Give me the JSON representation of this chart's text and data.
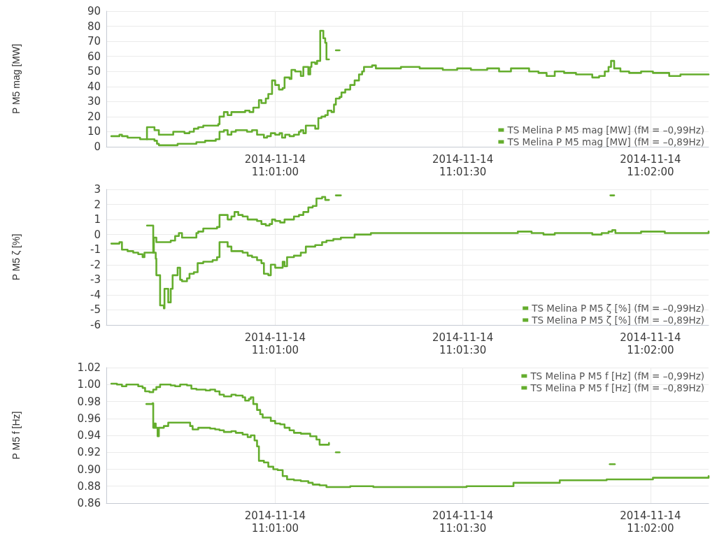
{
  "chart_data": [
    {
      "type": "step",
      "ylabel": "P M5 mag [MW]",
      "xlim": [
        "2014-11-14T11:00:33",
        "2014-11-14T11:02:09.3"
      ],
      "xticks": [
        {
          "value": "2014-11-14T11:01:00",
          "label": "2014-11-14\n11:01:00"
        },
        {
          "value": "2014-11-14T11:01:30",
          "label": "2014-11-14\n11:01:30"
        },
        {
          "value": "2014-11-14T11:02:00",
          "label": "2014-11-14\n11:02:00"
        }
      ],
      "ylim": [
        0,
        90
      ],
      "yticks": [
        0,
        10,
        20,
        30,
        40,
        50,
        60,
        70,
        80,
        90
      ],
      "grid": true,
      "legend": "bottom right",
      "series": [
        {
          "name": "TS Melina P M5 mag [MW] (fM = –0,99Hz)",
          "color": "#64ad2d",
          "x": [
            "2014-11-14T11:00:33.8",
            "2014-11-14T11:00:34.7",
            "2014-11-14T11:00:35.1",
            "2014-11-14T11:00:35.5",
            "2014-11-14T11:00:36.4",
            "2014-11-14T11:00:37.3",
            "2014-11-14T11:00:38.4",
            "2014-11-14T11:00:39.5",
            "2014-11-14T11:00:40.3",
            "2014-11-14T11:00:40.7",
            "2014-11-14T11:00:41.4",
            "2014-11-14T11:00:42.2",
            "2014-11-14T11:00:43.7",
            "2014-11-14T11:00:44.4",
            "2014-11-14T11:00:45.5",
            "2014-11-14T11:00:46.3",
            "2014-11-14T11:00:47",
            "2014-11-14T11:00:47.7",
            "2014-11-14T11:00:48.5",
            "2014-11-14T11:00:49.6",
            "2014-11-14T11:00:50.9",
            "2014-11-14T11:00:51.1",
            "2014-11-14T11:00:51.8",
            "2014-11-14T11:00:52.4",
            "2014-11-14T11:00:53",
            "2014-11-14T11:00:54.4",
            "2014-11-14T11:00:55.2",
            "2014-11-14T11:00:55.9",
            "2014-11-14T11:00:56.5",
            "2014-11-14T11:00:57.1",
            "2014-11-14T11:00:57.4",
            "2014-11-14T11:00:57.8",
            "2014-11-14T11:00:58.5",
            "2014-11-14T11:00:58.9",
            "2014-11-14T11:00:59.5",
            "2014-11-14T11:01:00",
            "2014-11-14T11:01:00.6",
            "2014-11-14T11:01:01.2",
            "2014-11-14T11:01:01.5",
            "2014-11-14T11:01:02.3",
            "2014-11-14T11:01:02.6",
            "2014-11-14T11:01:03.2",
            "2014-11-14T11:01:04.1",
            "2014-11-14T11:01:04.5",
            "2014-11-14T11:01:05.3",
            "2014-11-14T11:01:05.6",
            "2014-11-14T11:01:05.8",
            "2014-11-14T11:01:06.4",
            "2014-11-14T11:01:06.7",
            "2014-11-14T11:01:07.2",
            "2014-11-14T11:01:07.7",
            "2014-11-14T11:01:08",
            "2014-11-14T11:01:08.2",
            "2014-11-14T11:01:08.6"
          ],
          "values": [
            7,
            7,
            8,
            7,
            6,
            6,
            5,
            13,
            13,
            11,
            8,
            8,
            10,
            10,
            9,
            10,
            12,
            13,
            14,
            14,
            15,
            20,
            23,
            21,
            23,
            23,
            24,
            23,
            26,
            26,
            31,
            29,
            32,
            35,
            44,
            41,
            38,
            39,
            46,
            45,
            51,
            50,
            47,
            53,
            48,
            53,
            56,
            55,
            57,
            77,
            72,
            69,
            58,
            58
          ]
        },
        {
          "color": "#64ad2d",
          "x": [
            "2014-11-14T11:01:09.7",
            "2014-11-14T11:01:10.3"
          ],
          "values": [
            64,
            64
          ]
        },
        {
          "name": "TS Melina P M5 mag [MW] (fM = –0,89Hz)",
          "color": "#64ad2d",
          "x": [
            "2014-11-14T11:00:39.5",
            "2014-11-14T11:00:40.3",
            "2014-11-14T11:00:40.7",
            "2014-11-14T11:00:41.1",
            "2014-11-14T11:00:41.4",
            "2014-11-14T11:00:43.7",
            "2014-11-14T11:00:44.4",
            "2014-11-14T11:00:45.5",
            "2014-11-14T11:00:46.6",
            "2014-11-14T11:00:47.4",
            "2014-11-14T11:00:48.1",
            "2014-11-14T11:00:48.8",
            "2014-11-14T11:00:49.6",
            "2014-11-14T11:00:50.5",
            "2014-11-14T11:00:50.9",
            "2014-11-14T11:00:51.1",
            "2014-11-14T11:00:51.8",
            "2014-11-14T11:00:52.4",
            "2014-11-14T11:00:53",
            "2014-11-14T11:00:53.7",
            "2014-11-14T11:00:55.5",
            "2014-11-14T11:00:56.3",
            "2014-11-14T11:00:57.1",
            "2014-11-14T11:00:57.6",
            "2014-11-14T11:00:58.2",
            "2014-11-14T11:00:58.7",
            "2014-11-14T11:00:59.3",
            "2014-11-14T11:01:00",
            "2014-11-14T11:01:00.7",
            "2014-11-14T11:01:01.1",
            "2014-11-14T11:01:01.6",
            "2014-11-14T11:01:02.3",
            "2014-11-14T11:01:03",
            "2014-11-14T11:01:03.8",
            "2014-11-14T11:01:04.1",
            "2014-11-14T11:01:04.5",
            "2014-11-14T11:01:04.9",
            "2014-11-14T11:01:05.6",
            "2014-11-14T11:01:06.4",
            "2014-11-14T11:01:06.9",
            "2014-11-14T11:01:07.4",
            "2014-11-14T11:01:08",
            "2014-11-14T11:01:08.4",
            "2014-11-14T11:01:09",
            "2014-11-14T11:01:09.4",
            "2014-11-14T11:01:09.7",
            "2014-11-14T11:01:10.3",
            "2014-11-14T11:01:10.6",
            "2014-11-14T11:01:11.2",
            "2014-11-14T11:01:12",
            "2014-11-14T11:01:12.7",
            "2014-11-14T11:01:13.4",
            "2014-11-14T11:01:13.9",
            "2014-11-14T11:01:14.2",
            "2014-11-14T11:01:15.5",
            "2014-11-14T11:01:16.1",
            "2014-11-14T11:01:17.5",
            "2014-11-14T11:01:20.1",
            "2014-11-14T11:01:23.1",
            "2014-11-14T11:01:26.8",
            "2014-11-14T11:01:29.1",
            "2014-11-14T11:01:31.3",
            "2014-11-14T11:01:33.9",
            "2014-11-14T11:01:35.8",
            "2014-11-14T11:01:37.7",
            "2014-11-14T11:01:39.5",
            "2014-11-14T11:01:40.6",
            "2014-11-14T11:01:42.1",
            "2014-11-14T11:01:43.4",
            "2014-11-14T11:01:44.7",
            "2014-11-14T11:01:46.2",
            "2014-11-14T11:01:48.1",
            "2014-11-14T11:01:49.9",
            "2014-11-14T11:01:50.7",
            "2014-11-14T11:01:51.8",
            "2014-11-14T11:01:52.7",
            "2014-11-14T11:01:53.3",
            "2014-11-14T11:01:53.7",
            "2014-11-14T11:01:54.2",
            "2014-11-14T11:01:55.2",
            "2014-11-14T11:01:56.6",
            "2014-11-14T11:01:58.5",
            "2014-11-14T11:02:00.4",
            "2014-11-14T11:02:03",
            "2014-11-14T11:02:04.8",
            "2014-11-14T11:02:07.1",
            "2014-11-14T11:02:09.3"
          ],
          "values": [
            5,
            5,
            4,
            2,
            1,
            1,
            2,
            2,
            2,
            3,
            3,
            4,
            4,
            5,
            5,
            10,
            11,
            8,
            10,
            11,
            10,
            11,
            8,
            8,
            6,
            7,
            9,
            8,
            9,
            6,
            8,
            7,
            8,
            10,
            11,
            9,
            14,
            14,
            12,
            19,
            20,
            21,
            24,
            23,
            28,
            32,
            33,
            36,
            38,
            41,
            44,
            48,
            50,
            53,
            54,
            52,
            52,
            53,
            52,
            51,
            52,
            51,
            52,
            50,
            52,
            52,
            50,
            49,
            47,
            50,
            49,
            48,
            48,
            46,
            47,
            50,
            53,
            57,
            52,
            50,
            49,
            50,
            49,
            47,
            48,
            48,
            48
          ]
        }
      ]
    },
    {
      "type": "step",
      "ylabel": "P M5 ζ [%]",
      "xlim": [
        "2014-11-14T11:00:33",
        "2014-11-14T11:02:09.3"
      ],
      "xticks": [
        {
          "value": "2014-11-14T11:01:00",
          "label": "2014-11-14\n11:01:00"
        },
        {
          "value": "2014-11-14T11:01:30",
          "label": "2014-11-14\n11:01:30"
        },
        {
          "value": "2014-11-14T11:02:00",
          "label": "2014-11-14\n11:02:00"
        }
      ],
      "ylim": [
        -6,
        3
      ],
      "yticks": [
        -6,
        -5,
        -4,
        -3,
        -2,
        -1,
        0,
        1,
        2,
        3
      ],
      "grid": true,
      "legend": "bottom right",
      "series": [
        {
          "name": "TS Melina P M5 ζ [%] (fM = –0,99Hz)",
          "color": "#64ad2d",
          "x": [
            "2014-11-14T11:00:33.8",
            "2014-11-14T11:00:34.7",
            "2014-11-14T11:00:35.1",
            "2014-11-14T11:00:35.5",
            "2014-11-14T11:00:36.4",
            "2014-11-14T11:00:37.3",
            "2014-11-14T11:00:38.1",
            "2014-11-14T11:00:38.8",
            "2014-11-14T11:00:39.1",
            "2014-11-14T11:00:40.6",
            "2014-11-14T11:00:41",
            "2014-11-14T11:00:43.3",
            "2014-11-14T11:00:44",
            "2014-11-14T11:00:44.6",
            "2014-11-14T11:00:45.1",
            "2014-11-14T11:00:47.4",
            "2014-11-14T11:00:47.7",
            "2014-11-14T11:00:48.5",
            "2014-11-14T11:00:50.7",
            "2014-11-14T11:00:51.1",
            "2014-11-14T11:00:52.4",
            "2014-11-14T11:00:53",
            "2014-11-14T11:00:53.5",
            "2014-11-14T11:00:54.1",
            "2014-11-14T11:00:54.8",
            "2014-11-14T11:00:55.6",
            "2014-11-14T11:00:57.1",
            "2014-11-14T11:00:57.8",
            "2014-11-14T11:00:58.5",
            "2014-11-14T11:00:59.1",
            "2014-11-14T11:00:59.5",
            "2014-11-14T11:01:00",
            "2014-11-14T11:01:00.8",
            "2014-11-14T11:01:01.5",
            "2014-11-14T11:01:03",
            "2014-11-14T11:01:03.8",
            "2014-11-14T11:01:04.5",
            "2014-11-14T11:01:05.3",
            "2014-11-14T11:01:06",
            "2014-11-14T11:01:06.6",
            "2014-11-14T11:01:07.5",
            "2014-11-14T11:01:08",
            "2014-11-14T11:01:08.6"
          ],
          "values": [
            -0.6,
            -0.6,
            -0.5,
            -1.0,
            -1.1,
            -1.2,
            -1.3,
            -1.5,
            -1.2,
            -0.2,
            -0.5,
            -0.4,
            -0.1,
            0.1,
            -0.2,
            0.1,
            0.2,
            0.4,
            0.5,
            1.3,
            1.0,
            1.2,
            1.5,
            1.3,
            1.2,
            1.0,
            0.9,
            0.7,
            0.6,
            0.7,
            1.0,
            0.9,
            0.8,
            1.0,
            1.2,
            1.3,
            1.5,
            1.8,
            1.9,
            2.4,
            2.5,
            2.3,
            2.3
          ]
        },
        {
          "color": "#64ad2d",
          "x": [
            "2014-11-14T11:01:09.7",
            "2014-11-14T11:01:10.5"
          ],
          "values": [
            2.6,
            2.6
          ]
        },
        {
          "color": "#64ad2d",
          "x": [
            "2014-11-14T11:01:53.6",
            "2014-11-14T11:01:54.2"
          ],
          "values": [
            2.6,
            2.6
          ]
        },
        {
          "name": "TS Melina P M5 ζ [%] (fM = –0,89Hz)",
          "color": "#64ad2d",
          "x": [
            "2014-11-14T11:00:39.5",
            "2014-11-14T11:00:40.5",
            "2014-11-14T11:00:40.9",
            "2014-11-14T11:00:41",
            "2014-11-14T11:00:41.6",
            "2014-11-14T11:00:42.2",
            "2014-11-14T11:00:42.3",
            "2014-11-14T11:00:42.9",
            "2014-11-14T11:00:43.3",
            "2014-11-14T11:00:43.6",
            "2014-11-14T11:00:44.4",
            "2014-11-14T11:00:44.8",
            "2014-11-14T11:00:45.1",
            "2014-11-14T11:00:45.9",
            "2014-11-14T11:00:46.3",
            "2014-11-14T11:00:47",
            "2014-11-14T11:00:47.6",
            "2014-11-14T11:00:48.5",
            "2014-11-14T11:00:50",
            "2014-11-14T11:00:50.7",
            "2014-11-14T11:00:51.1",
            "2014-11-14T11:00:52.4",
            "2014-11-14T11:00:53",
            "2014-11-14T11:00:54.8",
            "2014-11-14T11:00:55.6",
            "2014-11-14T11:00:56.3",
            "2014-11-14T11:00:57.1",
            "2014-11-14T11:00:57.8",
            "2014-11-14T11:00:58.2",
            "2014-11-14T11:00:58.9",
            "2014-11-14T11:00:59.3",
            "2014-11-14T11:01:00",
            "2014-11-14T11:01:01.2",
            "2014-11-14T11:01:01.5",
            "2014-11-14T11:01:01.9",
            "2014-11-14T11:01:03",
            "2014-11-14T11:01:04.1",
            "2014-11-14T11:01:04.9",
            "2014-11-14T11:01:06.4",
            "2014-11-14T11:01:07.5",
            "2014-11-14T11:01:08.2",
            "2014-11-14T11:01:09.3",
            "2014-11-14T11:01:10.5",
            "2014-11-14T11:01:12.7",
            "2014-11-14T11:01:15.3",
            "2014-11-14T11:01:38.8",
            "2014-11-14T11:01:41",
            "2014-11-14T11:01:42.9",
            "2014-11-14T11:01:44.7",
            "2014-11-14T11:01:50.7",
            "2014-11-14T11:01:52.2",
            "2014-11-14T11:01:53.3",
            "2014-11-14T11:01:53.9",
            "2014-11-14T11:01:54.4",
            "2014-11-14T11:01:58.5",
            "2014-11-14T11:02:02.3",
            "2014-11-14T11:02:09.3"
          ],
          "values": [
            0.6,
            -1.2,
            -1.6,
            -2.7,
            -4.7,
            -4.9,
            -3.6,
            -4.5,
            -3.6,
            -2.7,
            -2.2,
            -3.0,
            -3.1,
            -2.9,
            -2.6,
            -2.5,
            -1.9,
            -1.8,
            -1.7,
            -1.5,
            -0.5,
            -0.8,
            -1.1,
            -1.2,
            -1.4,
            -1.5,
            -1.7,
            -1.9,
            -2.6,
            -2.7,
            -2.0,
            -2.2,
            -1.8,
            -2.1,
            -1.5,
            -1.4,
            -1.2,
            -0.8,
            -0.7,
            -0.5,
            -0.4,
            -0.3,
            -0.2,
            0.0,
            0.1,
            0.2,
            0.1,
            0.0,
            0.1,
            0.0,
            0.1,
            0.2,
            0.3,
            0.1,
            0.2,
            0.1,
            0.2
          ]
        }
      ]
    },
    {
      "type": "step",
      "ylabel": "P M5 f [Hz]",
      "xlim": [
        "2014-11-14T11:00:33",
        "2014-11-14T11:02:09.3"
      ],
      "xticks": [
        {
          "value": "2014-11-14T11:01:00",
          "label": "2014-11-14\n11:01:00"
        },
        {
          "value": "2014-11-14T11:01:30",
          "label": "2014-11-14\n11:01:30"
        },
        {
          "value": "2014-11-14T11:02:00",
          "label": "2014-11-14\n11:02:00"
        }
      ],
      "ylim": [
        0.86,
        1.02
      ],
      "yticks": [
        0.86,
        0.88,
        {
          "value": 0.9,
          "label": "0.90"
        },
        0.92,
        0.94,
        0.96,
        0.98,
        {
          "value": 1,
          "label": "1.00"
        },
        1.02
      ],
      "grid": true,
      "legend": "top right",
      "series": [
        {
          "name": "TS Melina P M5 f [Hz] (fM = –0,99Hz)",
          "color": "#64ad2d",
          "x": [
            "2014-11-14T11:00:33.8",
            "2014-11-14T11:00:34.7",
            "2014-11-14T11:00:35.5",
            "2014-11-14T11:00:36.2",
            "2014-11-14T11:00:38.1",
            "2014-11-14T11:00:38.8",
            "2014-11-14T11:00:39.2",
            "2014-11-14T11:00:39.9",
            "2014-11-14T11:00:40.5",
            "2014-11-14T11:00:41",
            "2014-11-14T11:00:41.6",
            "2014-11-14T11:00:43.3",
            "2014-11-14T11:00:44",
            "2014-11-14T11:00:44.8",
            "2014-11-14T11:00:45.9",
            "2014-11-14T11:00:46.6",
            "2014-11-14T11:00:47.4",
            "2014-11-14T11:00:48.9",
            "2014-11-14T11:00:49.6",
            "2014-11-14T11:00:50.4",
            "2014-11-14T11:00:51.1",
            "2014-11-14T11:00:51.8",
            "2014-11-14T11:00:53",
            "2014-11-14T11:00:53.7",
            "2014-11-14T11:00:54.8",
            "2014-11-14T11:00:55.2",
            "2014-11-14T11:00:55.8",
            "2014-11-14T11:00:56.1",
            "2014-11-14T11:00:56.5",
            "2014-11-14T11:00:57.1",
            "2014-11-14T11:00:57.6",
            "2014-11-14T11:00:58",
            "2014-11-14T11:00:59.3",
            "2014-11-14T11:01:00",
            "2014-11-14T11:01:00.8",
            "2014-11-14T11:01:01.5",
            "2014-11-14T11:01:02.3",
            "2014-11-14T11:01:03",
            "2014-11-14T11:01:04.1",
            "2014-11-14T11:01:05.6",
            "2014-11-14T11:01:06.6",
            "2014-11-14T11:01:07.1",
            "2014-11-14T11:01:08.6"
          ],
          "values": [
            1.001,
            1,
            0.998,
            1,
            0.998,
            0.996,
            0.992,
            0.991,
            0.994,
            0.997,
            1,
            0.999,
            0.998,
            1,
            0.999,
            0.995,
            0.994,
            0.993,
            0.994,
            0.992,
            0.988,
            0.986,
            0.988,
            0.987,
            0.985,
            0.981,
            0.983,
            0.985,
            0.977,
            0.97,
            0.965,
            0.961,
            0.957,
            0.954,
            0.953,
            0.949,
            0.946,
            0.943,
            0.942,
            0.939,
            0.935,
            0.929,
            0.931
          ]
        },
        {
          "color": "#64ad2d",
          "x": [
            "2014-11-14T11:01:09.7",
            "2014-11-14T11:01:10.3"
          ],
          "values": [
            0.92,
            0.92
          ]
        },
        {
          "color": "#64ad2d",
          "x": [
            "2014-11-14T11:01:53.5",
            "2014-11-14T11:01:54.3"
          ],
          "values": [
            0.906,
            0.906
          ]
        },
        {
          "name": "TS Melina P M5 f [Hz] (fM = –0,89Hz)",
          "color": "#64ad2d",
          "x": [
            "2014-11-14T11:00:39.4",
            "2014-11-14T11:00:40.4",
            "2014-11-14T11:00:40.5",
            "2014-11-14T11:00:40.7",
            "2014-11-14T11:00:40.9",
            "2014-11-14T11:00:41.2",
            "2014-11-14T11:00:41.4",
            "2014-11-14T11:00:42.2",
            "2014-11-14T11:00:42.9",
            "2014-11-14T11:00:46.4",
            "2014-11-14T11:00:46.8",
            "2014-11-14T11:00:47.7",
            "2014-11-14T11:00:49.6",
            "2014-11-14T11:00:50.4",
            "2014-11-14T11:00:51.1",
            "2014-11-14T11:00:51.8",
            "2014-11-14T11:00:53",
            "2014-11-14T11:00:53.7",
            "2014-11-14T11:00:54.8",
            "2014-11-14T11:00:55.6",
            "2014-11-14T11:00:56.1",
            "2014-11-14T11:00:56.7",
            "2014-11-14T11:00:57.1",
            "2014-11-14T11:00:57.4",
            "2014-11-14T11:00:58.2",
            "2014-11-14T11:00:58.9",
            "2014-11-14T11:00:59.7",
            "2014-11-14T11:01:00.4",
            "2014-11-14T11:01:01.2",
            "2014-11-14T11:01:01.9",
            "2014-11-14T11:01:03",
            "2014-11-14T11:01:04.1",
            "2014-11-14T11:01:05.3",
            "2014-11-14T11:01:06",
            "2014-11-14T11:01:07.1",
            "2014-11-14T11:01:08.2",
            "2014-11-14T11:01:12",
            "2014-11-14T11:01:15.7",
            "2014-11-14T11:01:30.6",
            "2014-11-14T11:01:38.1",
            "2014-11-14T11:01:45.5",
            "2014-11-14T11:01:53",
            "2014-11-14T11:02:00.4",
            "2014-11-14T11:02:09.3"
          ],
          "values": [
            0.977,
            0.978,
            0.949,
            0.954,
            0.949,
            0.939,
            0.949,
            0.951,
            0.955,
            0.951,
            0.947,
            0.949,
            0.948,
            0.947,
            0.946,
            0.944,
            0.945,
            0.943,
            0.941,
            0.938,
            0.94,
            0.934,
            0.927,
            0.91,
            0.908,
            0.903,
            0.9,
            0.899,
            0.892,
            0.888,
            0.887,
            0.886,
            0.884,
            0.882,
            0.881,
            0.879,
            0.88,
            0.879,
            0.88,
            0.884,
            0.887,
            0.888,
            0.89,
            0.892
          ]
        }
      ]
    }
  ]
}
